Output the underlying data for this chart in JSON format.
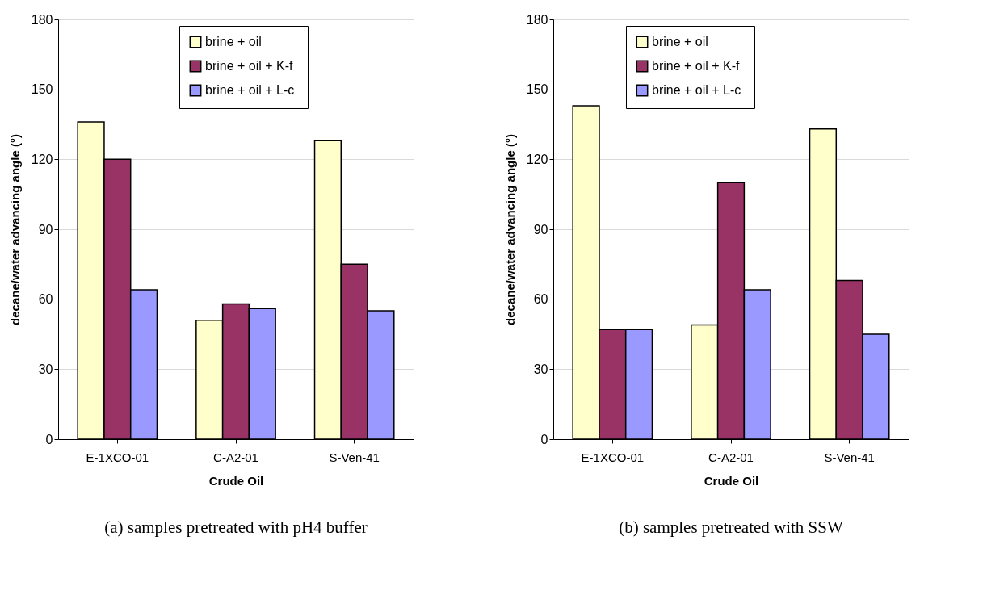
{
  "chart_data": [
    {
      "type": "bar",
      "title": "(a) samples pretreated with pH4 buffer",
      "xlabel": "Crude Oil",
      "ylabel": "decane/water advancing angle (°)",
      "categories": [
        "E-1XCO-01",
        "C-A2-01",
        "S-Ven-41"
      ],
      "series": [
        {
          "name": "brine + oil",
          "color": "#ffffcc",
          "values": [
            136,
            51,
            128
          ]
        },
        {
          "name": "brine + oil + K-f",
          "color": "#993366",
          "values": [
            120,
            58,
            75
          ]
        },
        {
          "name": "brine  + oil + L-c",
          "color": "#9999ff",
          "values": [
            64,
            56,
            55
          ]
        }
      ],
      "ylim": [
        0,
        180
      ],
      "yticks": [
        0,
        30,
        60,
        90,
        120,
        150,
        180
      ],
      "grid": "y",
      "legend": "top"
    },
    {
      "type": "bar",
      "title": "(b) samples pretreated with SSW",
      "xlabel": "Crude Oil",
      "ylabel": "decane/water advancing angle (°)",
      "categories": [
        "E-1XCO-01",
        "C-A2-01",
        "S-Ven-41"
      ],
      "series": [
        {
          "name": "brine + oil",
          "color": "#ffffcc",
          "values": [
            143,
            49,
            133
          ]
        },
        {
          "name": "brine + oil + K-f",
          "color": "#993366",
          "values": [
            47,
            110,
            68
          ]
        },
        {
          "name": "brine  + oil + L-c",
          "color": "#9999ff",
          "values": [
            47,
            64,
            45
          ]
        }
      ],
      "ylim": [
        0,
        180
      ],
      "yticks": [
        0,
        30,
        60,
        90,
        120,
        150,
        180
      ],
      "grid": "y",
      "legend": "top left"
    }
  ]
}
